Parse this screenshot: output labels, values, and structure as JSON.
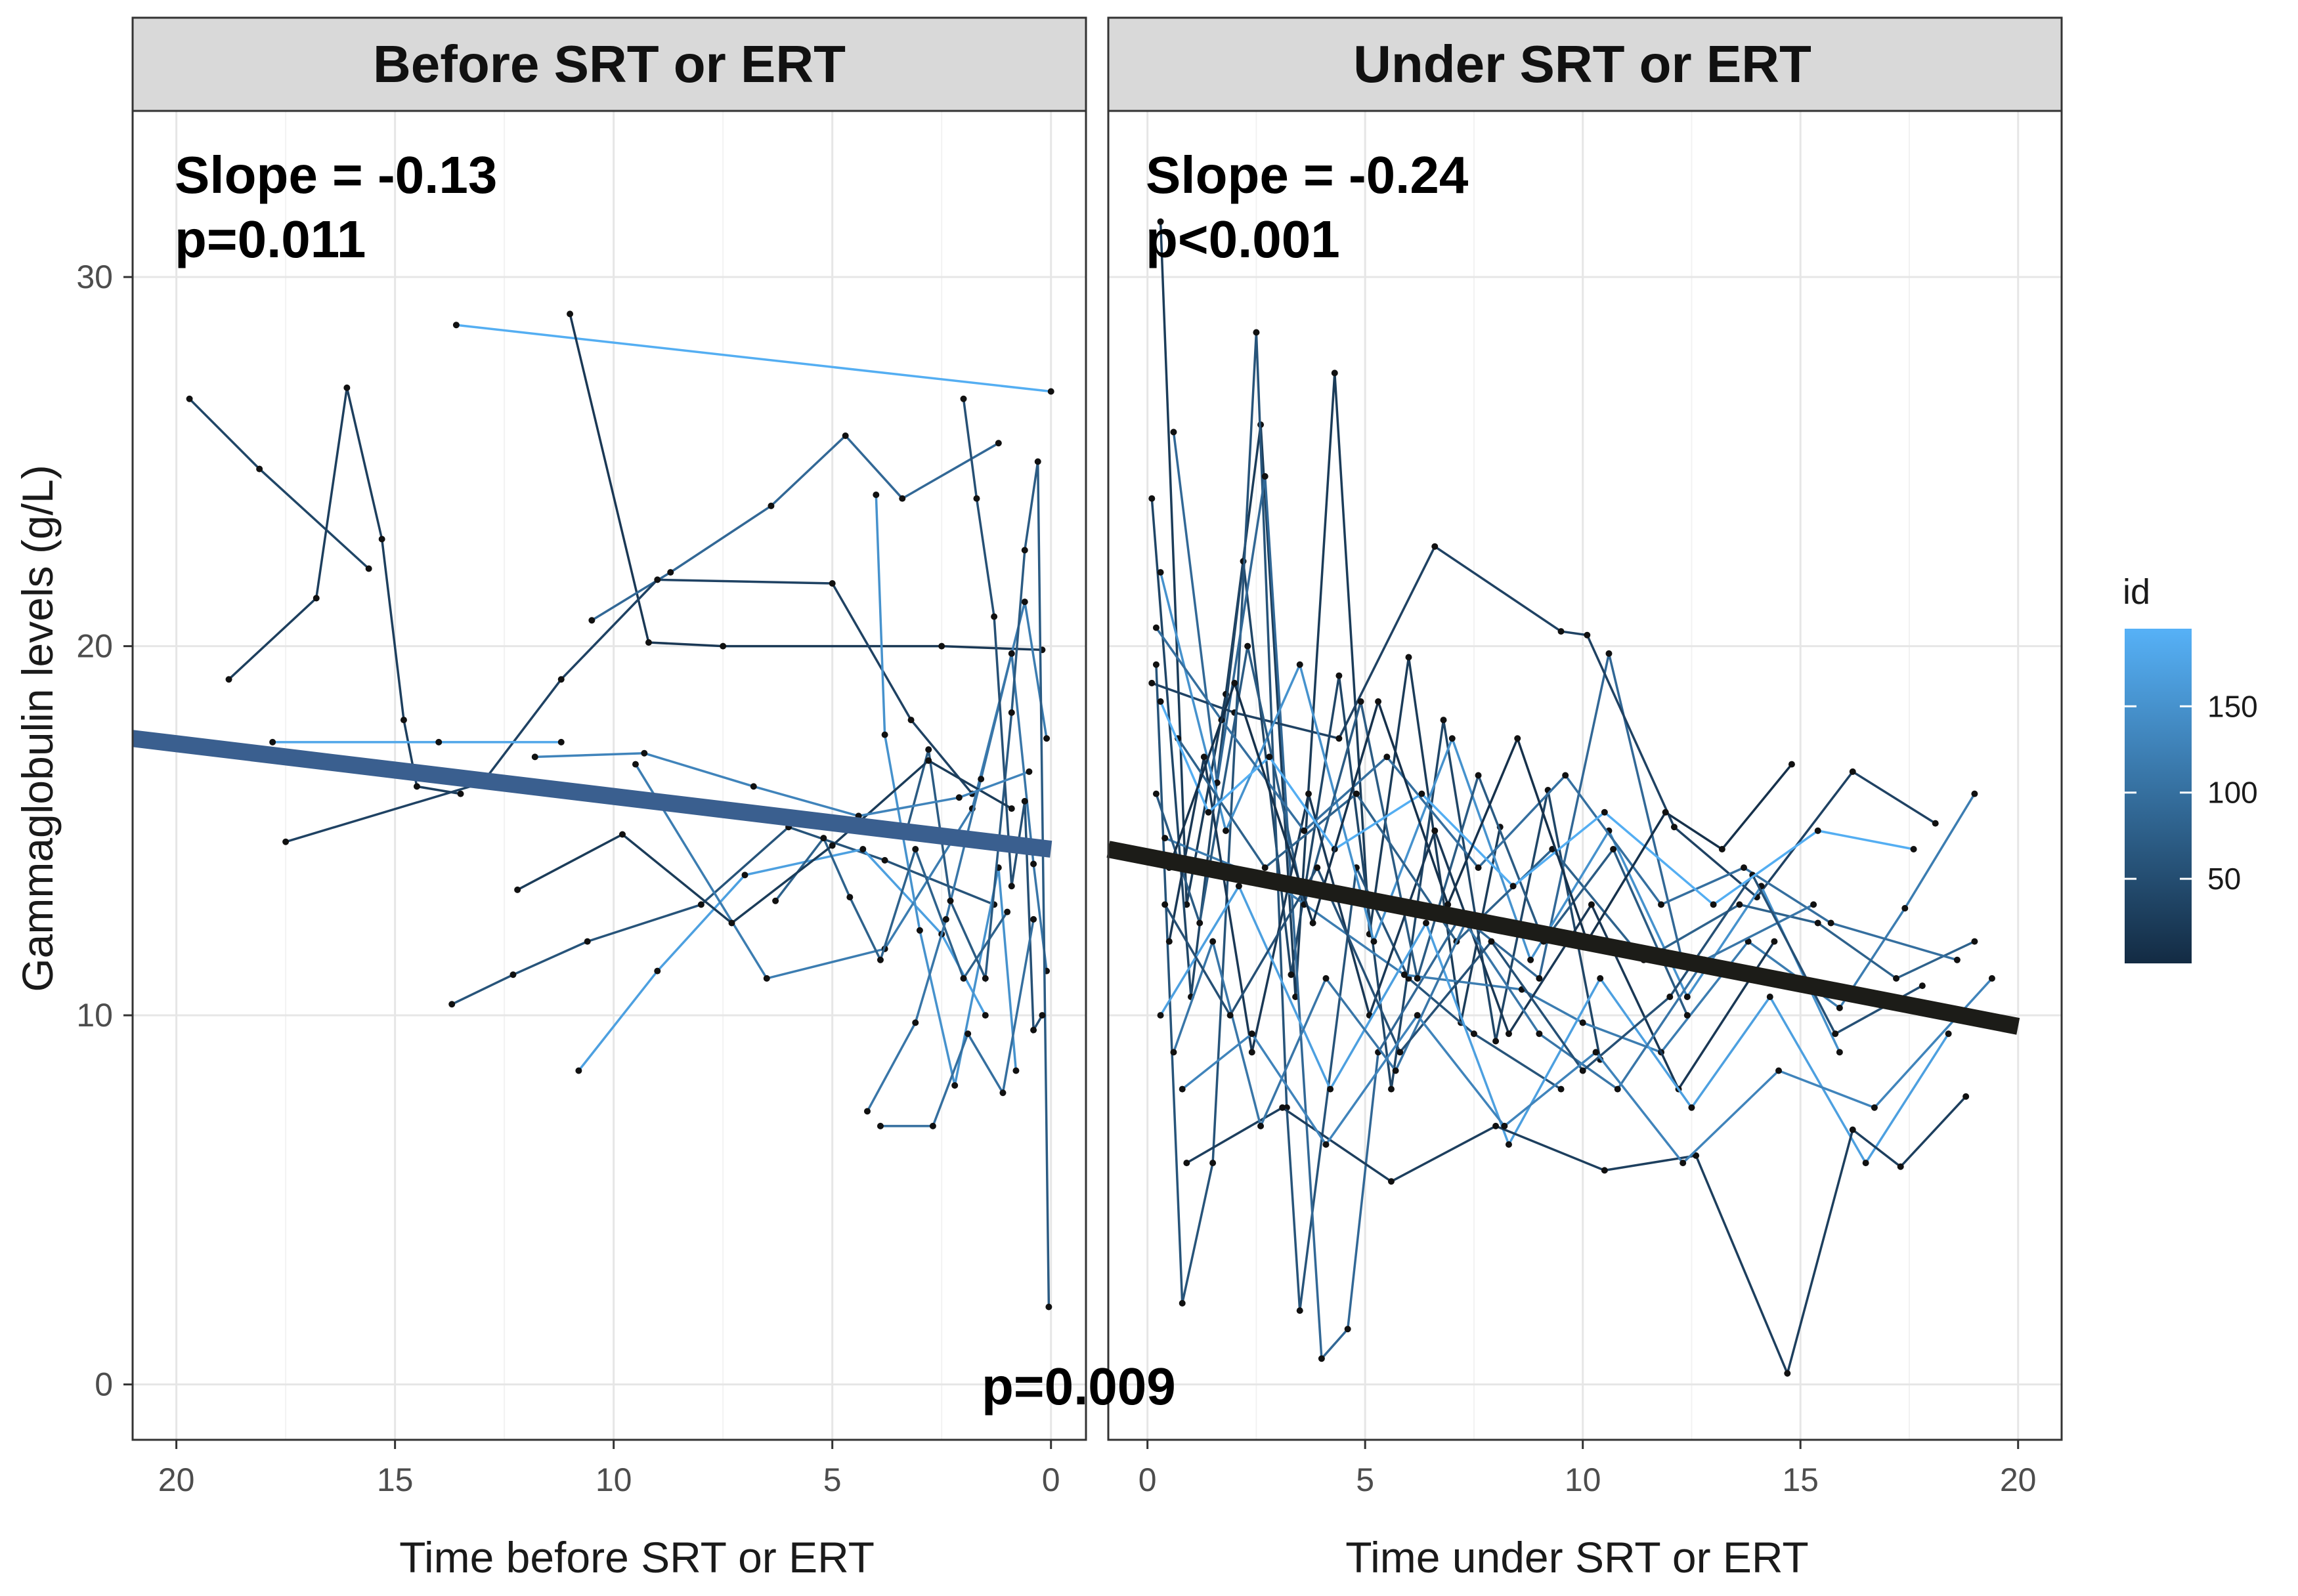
{
  "chart_data": {
    "type": "line",
    "ylabel": "Gammaglobulin levels (g/L)",
    "ylim": [
      -1.5,
      34.5
    ],
    "yticks": [
      0,
      10,
      20,
      30
    ],
    "grid": true,
    "panels": [
      {
        "strip": "Before SRT or ERT",
        "xlabel": "Time before SRT or ERT",
        "xlim": [
          21,
          -0.8
        ],
        "xticks": [
          20,
          15,
          10,
          5,
          0
        ],
        "slope_label": "Slope = -0.13",
        "p_label": "p=0.011",
        "fit": {
          "x": [
            21,
            0
          ],
          "y": [
            17.5,
            14.5
          ],
          "color": "#3a5f8f"
        },
        "series": [
          {
            "id": 190,
            "x": [
              13.6,
              0
            ],
            "y": [
              28.7,
              26.9
            ]
          },
          {
            "id": 40,
            "x": [
              19.7,
              18.1,
              15.6
            ],
            "y": [
              26.7,
              24.8,
              22.1
            ]
          },
          {
            "id": 30,
            "x": [
              18.8,
              16.8,
              16.1,
              15.3,
              14.8,
              14.5,
              13.5
            ],
            "y": [
              19.1,
              21.3,
              27.0,
              22.9,
              18.0,
              16.2,
              16.0
            ]
          },
          {
            "id": 20,
            "x": [
              11.0,
              9.2,
              7.5,
              2.5,
              0.2
            ],
            "y": [
              29.0,
              20.1,
              20.0,
              20.0,
              19.9
            ]
          },
          {
            "id": 90,
            "x": [
              10.5,
              8.7,
              6.4,
              4.7,
              3.4,
              1.2
            ],
            "y": [
              20.7,
              22.0,
              23.8,
              25.7,
              24.0,
              25.5
            ]
          },
          {
            "id": 35,
            "x": [
              17.5,
              13.0,
              11.2,
              9.0,
              5.0,
              3.2,
              1.8
            ],
            "y": [
              14.7,
              16.3,
              19.1,
              21.8,
              21.7,
              18.0,
              16.0
            ]
          },
          {
            "id": 60,
            "x": [
              13.7,
              12.3,
              10.6,
              8.0,
              6.0,
              3.8,
              1.3
            ],
            "y": [
              10.3,
              11.1,
              12.0,
              13.0,
              15.1,
              14.2,
              13.0
            ]
          },
          {
            "id": 170,
            "x": [
              10.8,
              9.0,
              7.0,
              4.3,
              2.5,
              1.5
            ],
            "y": [
              8.5,
              11.2,
              13.8,
              14.5,
              12.2,
              10.0
            ]
          },
          {
            "id": 120,
            "x": [
              9.5,
              6.5,
              3.8,
              1.8,
              0.6,
              0.1
            ],
            "y": [
              16.8,
              11.0,
              11.8,
              15.6,
              21.2,
              17.5
            ]
          },
          {
            "id": 150,
            "x": [
              4.0,
              3.8,
              3.0,
              2.2,
              1.2,
              0.8
            ],
            "y": [
              24.1,
              17.6,
              12.3,
              8.1,
              14.0,
              8.5
            ]
          },
          {
            "id": 80,
            "x": [
              6.3,
              5.2,
              4.6,
              3.9,
              3.1,
              2.0,
              1.0
            ],
            "y": [
              13.1,
              14.8,
              13.2,
              11.5,
              14.5,
              11.0,
              12.8
            ]
          },
          {
            "id": 110,
            "x": [
              4.2,
              3.1,
              2.4,
              1.6,
              0.9,
              0.4,
              0.1
            ],
            "y": [
              7.4,
              9.8,
              12.6,
              16.4,
              19.8,
              14.1,
              11.2
            ]
          },
          {
            "id": 70,
            "x": [
              3.3,
              2.8,
              2.3,
              1.5,
              0.9,
              0.6,
              0.3,
              0.05
            ],
            "y": [
              15.0,
              17.2,
              13.1,
              11.0,
              18.2,
              22.6,
              25.0,
              2.1
            ]
          },
          {
            "id": 55,
            "x": [
              2.0,
              1.7,
              1.3,
              0.9,
              0.6,
              0.4,
              0.2
            ],
            "y": [
              26.7,
              24.0,
              20.8,
              13.5,
              15.8,
              9.6,
              10.0
            ]
          },
          {
            "id": 180,
            "x": [
              17.8,
              14.0,
              11.2
            ],
            "y": [
              17.4,
              17.4,
              17.4
            ]
          },
          {
            "id": 25,
            "x": [
              12.2,
              9.8,
              7.3,
              5.0,
              2.8,
              0.9
            ],
            "y": [
              13.4,
              14.9,
              12.5,
              14.6,
              16.9,
              15.6
            ]
          },
          {
            "id": 130,
            "x": [
              11.8,
              9.3,
              6.8,
              4.4,
              2.1,
              0.5
            ],
            "y": [
              17.0,
              17.1,
              16.2,
              15.4,
              15.9,
              16.6
            ]
          },
          {
            "id": 100,
            "x": [
              3.9,
              2.7,
              1.9,
              1.1,
              0.4
            ],
            "y": [
              7.0,
              7.0,
              9.5,
              7.9,
              12.6
            ]
          }
        ]
      },
      {
        "strip": "Under SRT or ERT",
        "xlabel": "Time under SRT or ERT",
        "xlim": [
          -0.9,
          21.0
        ],
        "xticks": [
          0,
          5,
          10,
          15,
          20
        ],
        "slope_label": "Slope = -0.24",
        "p_label": "p<0.001",
        "fit": {
          "x": [
            -0.9,
            20.0
          ],
          "y": [
            14.5,
            9.7
          ],
          "color": "#1c1c18"
        },
        "series": [
          {
            "id": 25,
            "x": [
              0.3,
              0.9,
              1.8,
              2.6,
              3.4,
              4.3,
              5.1,
              6.0,
              7.2,
              8.1
            ],
            "y": [
              31.5,
              13.0,
              18.7,
              26.0,
              10.5,
              27.4,
              12.2,
              19.7,
              9.8,
              15.1
            ]
          },
          {
            "id": 40,
            "x": [
              0.1,
              1.0,
              2.2,
              3.3,
              4.4,
              5.6,
              6.8,
              8.0,
              9.2,
              10.4
            ],
            "y": [
              24.0,
              10.5,
              22.3,
              11.1,
              19.2,
              8.0,
              18.0,
              9.3,
              16.1,
              8.8
            ]
          },
          {
            "id": 60,
            "x": [
              0.2,
              0.8,
              1.5,
              2.5,
              3.2,
              3.5,
              4.8,
              6.0,
              7.5,
              9.5
            ],
            "y": [
              19.5,
              2.2,
              6.0,
              28.5,
              7.5,
              2.0,
              14.0,
              11.0,
              9.5,
              8.0
            ]
          },
          {
            "id": 90,
            "x": [
              0.6,
              1.6,
              2.7,
              4.0,
              4.6,
              5.3,
              7.2,
              9.0,
              10.6,
              12.3
            ],
            "y": [
              25.8,
              16.3,
              24.6,
              0.7,
              1.5,
              9.0,
              12.7,
              11.0,
              19.8,
              11.4
            ]
          },
          {
            "id": 35,
            "x": [
              0.1,
              2.0,
              4.4,
              6.6,
              9.5,
              10.1,
              12.1,
              14.0,
              16.2,
              18.1
            ],
            "y": [
              19.0,
              18.2,
              17.5,
              22.7,
              20.4,
              20.3,
              15.1,
              13.2,
              16.6,
              15.2
            ]
          },
          {
            "id": 120,
            "x": [
              0.4,
              2.9,
              5.9,
              8.6,
              10.0,
              11.8,
              13.8,
              15.9,
              17.4,
              19.0
            ],
            "y": [
              14.8,
              13.6,
              11.1,
              10.7,
              9.8,
              9.0,
              12.0,
              10.2,
              12.9,
              16.0
            ]
          },
          {
            "id": 150,
            "x": [
              0.3,
              1.8,
              3.5,
              5.2,
              7.0,
              8.8,
              10.6,
              12.4,
              14.1,
              15.9
            ],
            "y": [
              22.0,
              15.0,
              19.5,
              12.0,
              17.5,
              11.5,
              15.0,
              10.5,
              13.5,
              9.0
            ]
          },
          {
            "id": 70,
            "x": [
              0.2,
              1.2,
              2.3,
              3.6,
              4.9,
              6.2,
              7.6,
              9.1,
              10.7,
              12.4
            ],
            "y": [
              16.0,
              12.5,
              20.0,
              13.0,
              18.5,
              11.0,
              16.5,
              12.0,
              14.5,
              10.0
            ]
          },
          {
            "id": 20,
            "x": [
              0.5,
              1.3,
              2.4,
              3.7,
              5.1,
              6.6,
              8.3,
              10.2,
              12.2,
              14.4
            ],
            "y": [
              12.0,
              17.0,
              9.0,
              16.0,
              10.0,
              15.0,
              9.5,
              13.0,
              8.0,
              12.0
            ]
          },
          {
            "id": 170,
            "x": [
              0.3,
              2.1,
              4.2,
              6.4,
              8.3,
              10.4,
              12.5,
              14.3,
              16.5,
              18.4
            ],
            "y": [
              10.0,
              13.5,
              8.0,
              12.5,
              6.5,
              11.0,
              7.5,
              10.5,
              6.0,
              9.5
            ]
          },
          {
            "id": 80,
            "x": [
              0.7,
              2.7,
              4.8,
              7.1,
              9.3,
              11.4,
              13.6,
              15.4,
              17.2,
              19.0
            ],
            "y": [
              17.5,
              14.0,
              16.0,
              12.0,
              14.5,
              11.5,
              13.0,
              12.5,
              11.0,
              12.0
            ]
          },
          {
            "id": 100,
            "x": [
              0.2,
              1.7,
              3.6,
              5.5,
              7.6,
              9.6,
              11.8,
              13.7,
              15.7,
              18.6
            ],
            "y": [
              20.5,
              18.0,
              15.0,
              17.0,
              14.0,
              16.5,
              13.0,
              14.0,
              12.5,
              11.5
            ]
          },
          {
            "id": 30,
            "x": [
              0.9,
              3.1,
              5.6,
              8.0,
              10.5,
              12.6,
              14.7,
              16.2,
              17.3,
              18.8
            ],
            "y": [
              6.0,
              7.5,
              5.5,
              7.0,
              5.8,
              6.2,
              0.3,
              6.9,
              5.9,
              7.8
            ]
          },
          {
            "id": 110,
            "x": [
              0.6,
              1.5,
              2.6,
              4.1,
              5.7,
              7.3,
              9.0,
              10.8,
              12.8,
              15.3
            ],
            "y": [
              9.0,
              12.0,
              7.0,
              11.0,
              8.5,
              12.5,
              9.5,
              8.0,
              11.5,
              13.0
            ]
          },
          {
            "id": 55,
            "x": [
              0.4,
              1.9,
              3.9,
              5.8,
              7.9,
              10.0,
              12.0,
              13.9,
              15.8,
              17.8
            ],
            "y": [
              13.0,
              10.0,
              14.0,
              9.0,
              12.0,
              8.5,
              10.5,
              13.8,
              9.5,
              10.8
            ]
          },
          {
            "id": 190,
            "x": [
              0.3,
              1.4,
              2.8,
              4.3,
              6.3,
              8.4,
              10.5,
              13.0,
              15.4,
              17.6
            ],
            "y": [
              18.5,
              15.5,
              17.0,
              14.5,
              16.0,
              13.5,
              15.5,
              13.0,
              15.0,
              14.5
            ]
          },
          {
            "id": 130,
            "x": [
              0.8,
              2.4,
              4.1,
              6.2,
              8.2,
              10.3,
              12.3,
              14.5,
              16.7,
              19.4
            ],
            "y": [
              8.0,
              9.5,
              6.5,
              10.0,
              7.0,
              9.0,
              6.0,
              8.5,
              7.5,
              11.0
            ]
          },
          {
            "id": 10,
            "x": [
              0.5,
              2.0,
              3.8,
              5.3,
              6.9,
              8.5,
              10.1,
              11.9,
              13.2,
              14.8
            ],
            "y": [
              14.0,
              19.0,
              12.5,
              18.5,
              13.0,
              17.5,
              12.0,
              15.5,
              14.5,
              16.8
            ]
          }
        ]
      }
    ],
    "bottom_p_label": "p=0.009",
    "legend": {
      "title": "id",
      "ticks": [
        150,
        100,
        50
      ],
      "range": [
        1,
        195
      ],
      "low_color": "#132b43",
      "high_color": "#56b1f7"
    }
  }
}
